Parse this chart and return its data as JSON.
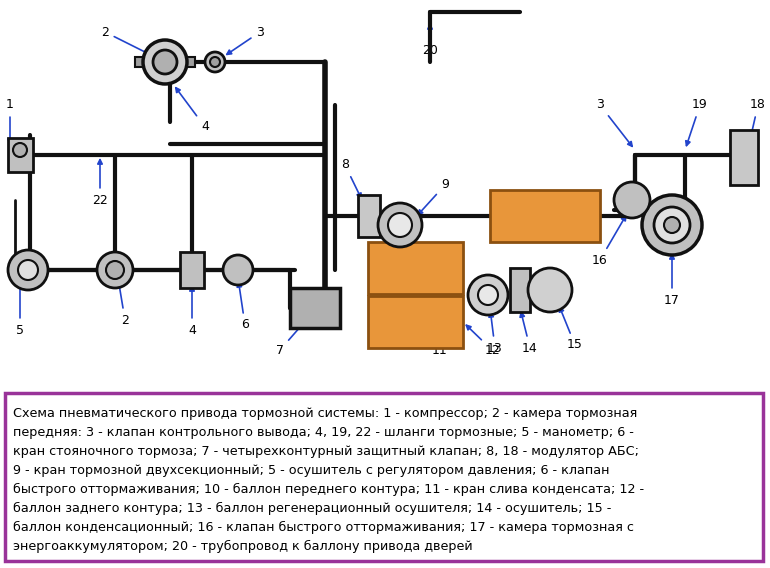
{
  "background_color": "#ffffff",
  "fig_width": 7.7,
  "fig_height": 5.68,
  "dpi": 100,
  "text_box": {
    "border_color": "#993399",
    "bg_color": "#ffffff",
    "text_color": "#000000",
    "font_size": 9.2,
    "text_line1": "Схема пневматического привода тормозной системы: 1 - компрессор; 2 - камера тормозная",
    "text_line2": "передняя: 3 - клапан контрольного вывода; 4, 19, 22 - шланги тормозные; 5 - манометр; 6 -",
    "text_line3": "кран стояночного тормоза; 7 - четырехконтурный защитный клапан; 8, 18 - модулятор АБС;",
    "text_line4": "9 - кран тормозной двухсекционный; 5 - осушитель с регулятором давления; 6 - клапан",
    "text_line5": "быстрого оттормаживания; 10 - баллон переднего контура; 11 - кран слива конденсата; 12 -",
    "text_line6": "баллон заднего контура; 13 - баллон регенерационный осушителя; 14 - осушитель; 15 -",
    "text_line7": "баллон конденсационный; 16 - клапан быстрого оттормаживания; 17 - камера тормозная с",
    "text_line8": "энергоаккумулятором; 20 - трубопровод к баллону привода дверей"
  },
  "lc": "#111111",
  "ac": "#2244cc",
  "oc": "#e8963a",
  "lw": 3.0,
  "lw2": 2.0,
  "lw3": 1.5
}
